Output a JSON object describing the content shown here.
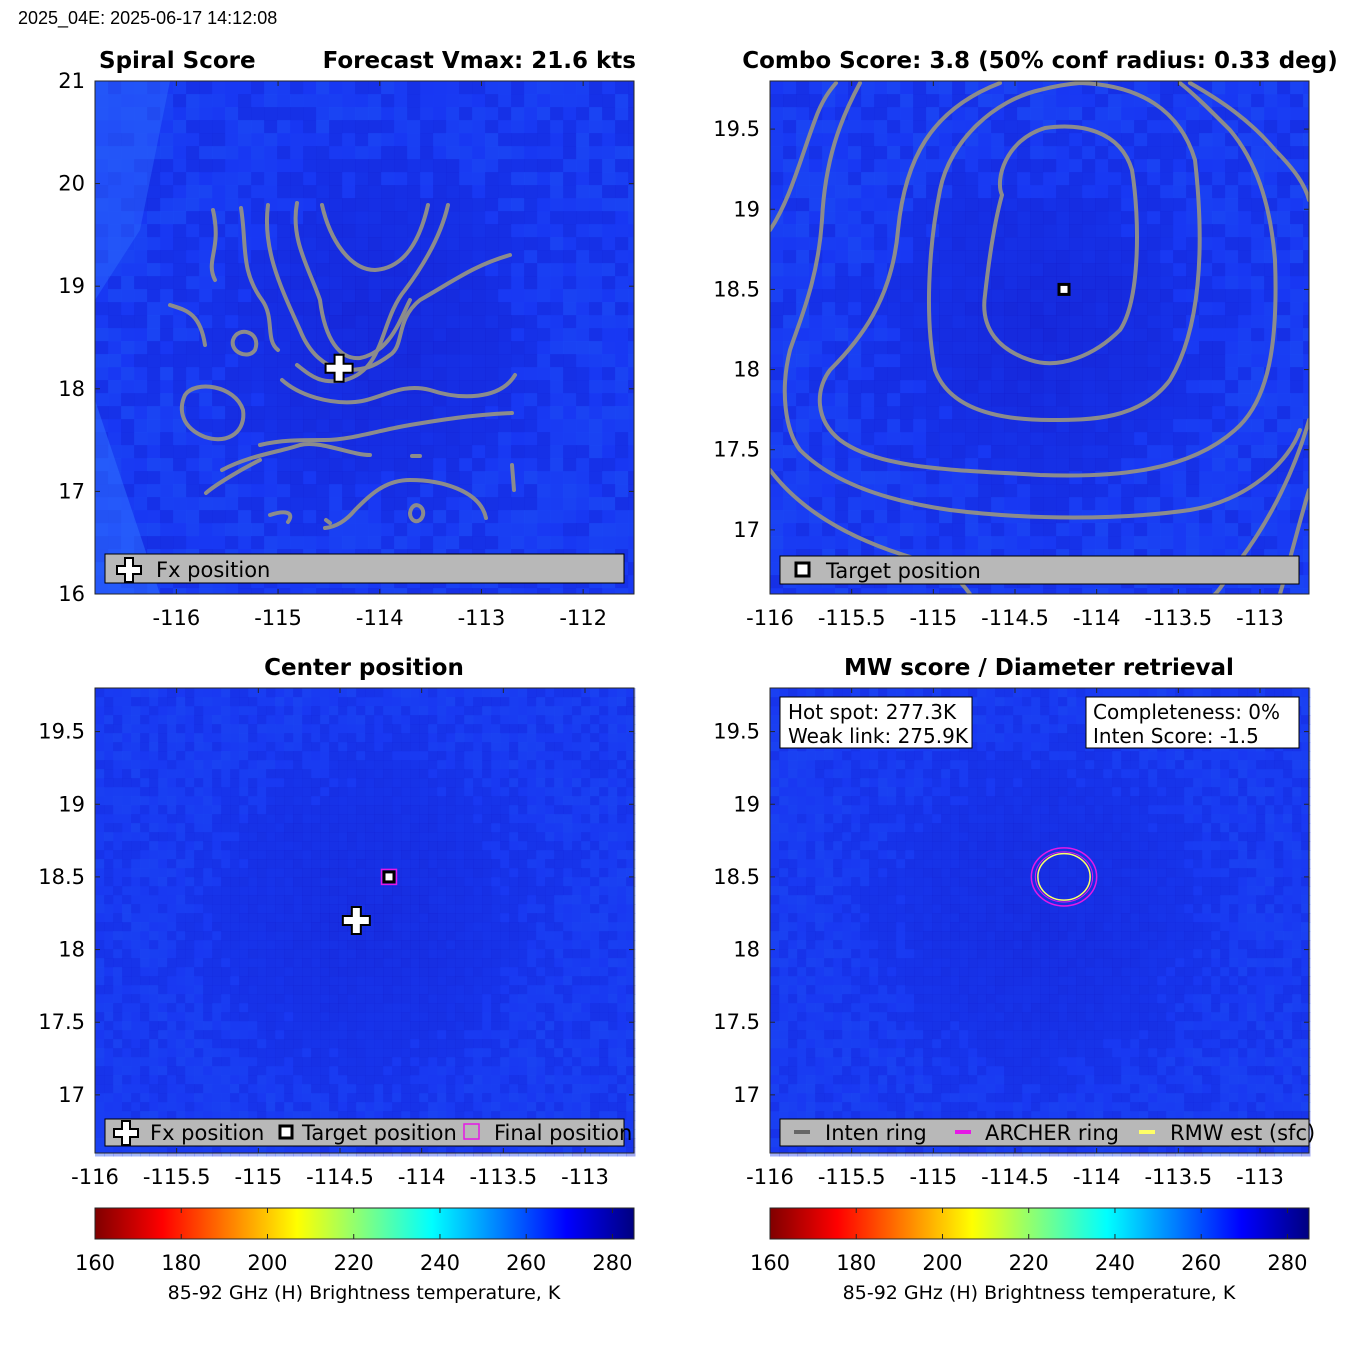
{
  "header": "2025_04E: 2025-06-17 14:12:08",
  "colors": {
    "field_base": "#1a3bf0",
    "contour": "#8c8c8c",
    "legend_bg": "#b8b8b8",
    "archer_ring": "#e619e6",
    "rmw": "#ffff66",
    "inten_ring": "#666666"
  },
  "colorbar": {
    "label": "85-92 GHz (H) Brightness temperature, K",
    "min": 160,
    "max": 285,
    "ticks": [
      "160",
      "180",
      "200",
      "220",
      "240",
      "260",
      "280"
    ],
    "colormap": "jet"
  },
  "chart_data": [
    {
      "type": "heatmap",
      "title_left": "Spiral Score",
      "title_right": "Forecast Vmax: 21.6 kts",
      "xlim": [
        -116.8,
        -111.5
      ],
      "ylim": [
        16,
        21
      ],
      "xticks": [
        "-116",
        "-115",
        "-114",
        "-113",
        "-112"
      ],
      "xtick_values": [
        -116,
        -115,
        -114,
        -113,
        -112
      ],
      "yticks": [
        "16",
        "17",
        "18",
        "19",
        "20",
        "21"
      ],
      "ytick_values": [
        16,
        17,
        18,
        19,
        20,
        21
      ],
      "markers": [
        {
          "name": "Fx position",
          "symbol": "plus",
          "lon": -114.4,
          "lat": 18.2
        }
      ],
      "legend": [
        "Fx position"
      ],
      "contours": "spiral score contours (gray)"
    },
    {
      "type": "heatmap",
      "title": "Combo Score: 3.8  (50% conf radius: 0.33 deg)",
      "xlim": [
        -116.0,
        -112.7
      ],
      "ylim": [
        16.6,
        19.8
      ],
      "xticks": [
        "-116",
        "-115.5",
        "-115",
        "-114.5",
        "-114",
        "-113.5",
        "-113"
      ],
      "xtick_values": [
        -116,
        -115.5,
        -115,
        -114.5,
        -114,
        -113.5,
        -113
      ],
      "yticks": [
        "17",
        "17.5",
        "18",
        "18.5",
        "19",
        "19.5"
      ],
      "ytick_values": [
        17,
        17.5,
        18,
        18.5,
        19,
        19.5
      ],
      "markers": [
        {
          "name": "Target position",
          "symbol": "square",
          "lon": -114.2,
          "lat": 18.5
        }
      ],
      "legend": [
        "Target position"
      ],
      "contours": "combo score contours (gray)"
    },
    {
      "type": "heatmap",
      "title": "Center position",
      "xlim": [
        -116.0,
        -112.7
      ],
      "ylim": [
        16.6,
        19.8
      ],
      "xticks": [
        "-116",
        "-115.5",
        "-115",
        "-114.5",
        "-114",
        "-113.5",
        "-113"
      ],
      "xtick_values": [
        -116,
        -115.5,
        -115,
        -114.5,
        -114,
        -113.5,
        -113
      ],
      "yticks": [
        "17",
        "17.5",
        "18",
        "18.5",
        "19",
        "19.5"
      ],
      "ytick_values": [
        17,
        17.5,
        18,
        18.5,
        19,
        19.5
      ],
      "markers": [
        {
          "name": "Fx position",
          "symbol": "plus",
          "lon": -114.4,
          "lat": 18.2
        },
        {
          "name": "Target position",
          "symbol": "square",
          "lon": -114.2,
          "lat": 18.5
        },
        {
          "name": "Final position",
          "symbol": "magenta-square",
          "lon": -114.2,
          "lat": 18.5
        }
      ],
      "legend": [
        "Fx position",
        "Target position",
        "Final position"
      ]
    },
    {
      "type": "heatmap",
      "title": "MW score / Diameter retrieval",
      "xlim": [
        -116.0,
        -112.7
      ],
      "ylim": [
        16.6,
        19.8
      ],
      "xticks": [
        "-116",
        "-115.5",
        "-115",
        "-114.5",
        "-114",
        "-113.5",
        "-113"
      ],
      "xtick_values": [
        -116,
        -115.5,
        -115,
        -114.5,
        -114,
        -113.5,
        -113
      ],
      "yticks": [
        "17",
        "17.5",
        "18",
        "18.5",
        "19",
        "19.5"
      ],
      "ytick_values": [
        17,
        17.5,
        18,
        18.5,
        19,
        19.5
      ],
      "info_left": [
        "Hot spot: 277.3K",
        "Weak link: 275.9K"
      ],
      "info_right": [
        "Completeness: 0%",
        "Inten Score: -1.5"
      ],
      "rings": [
        {
          "name": "ARCHER ring",
          "lon": -114.2,
          "lat": 18.5,
          "radius_deg": 0.2
        },
        {
          "name": "RMW est (sfc)",
          "lon": -114.2,
          "lat": 18.5,
          "radius_deg": 0.16
        }
      ],
      "legend": [
        "Inten ring",
        "ARCHER ring",
        "RMW est (sfc)"
      ]
    }
  ]
}
